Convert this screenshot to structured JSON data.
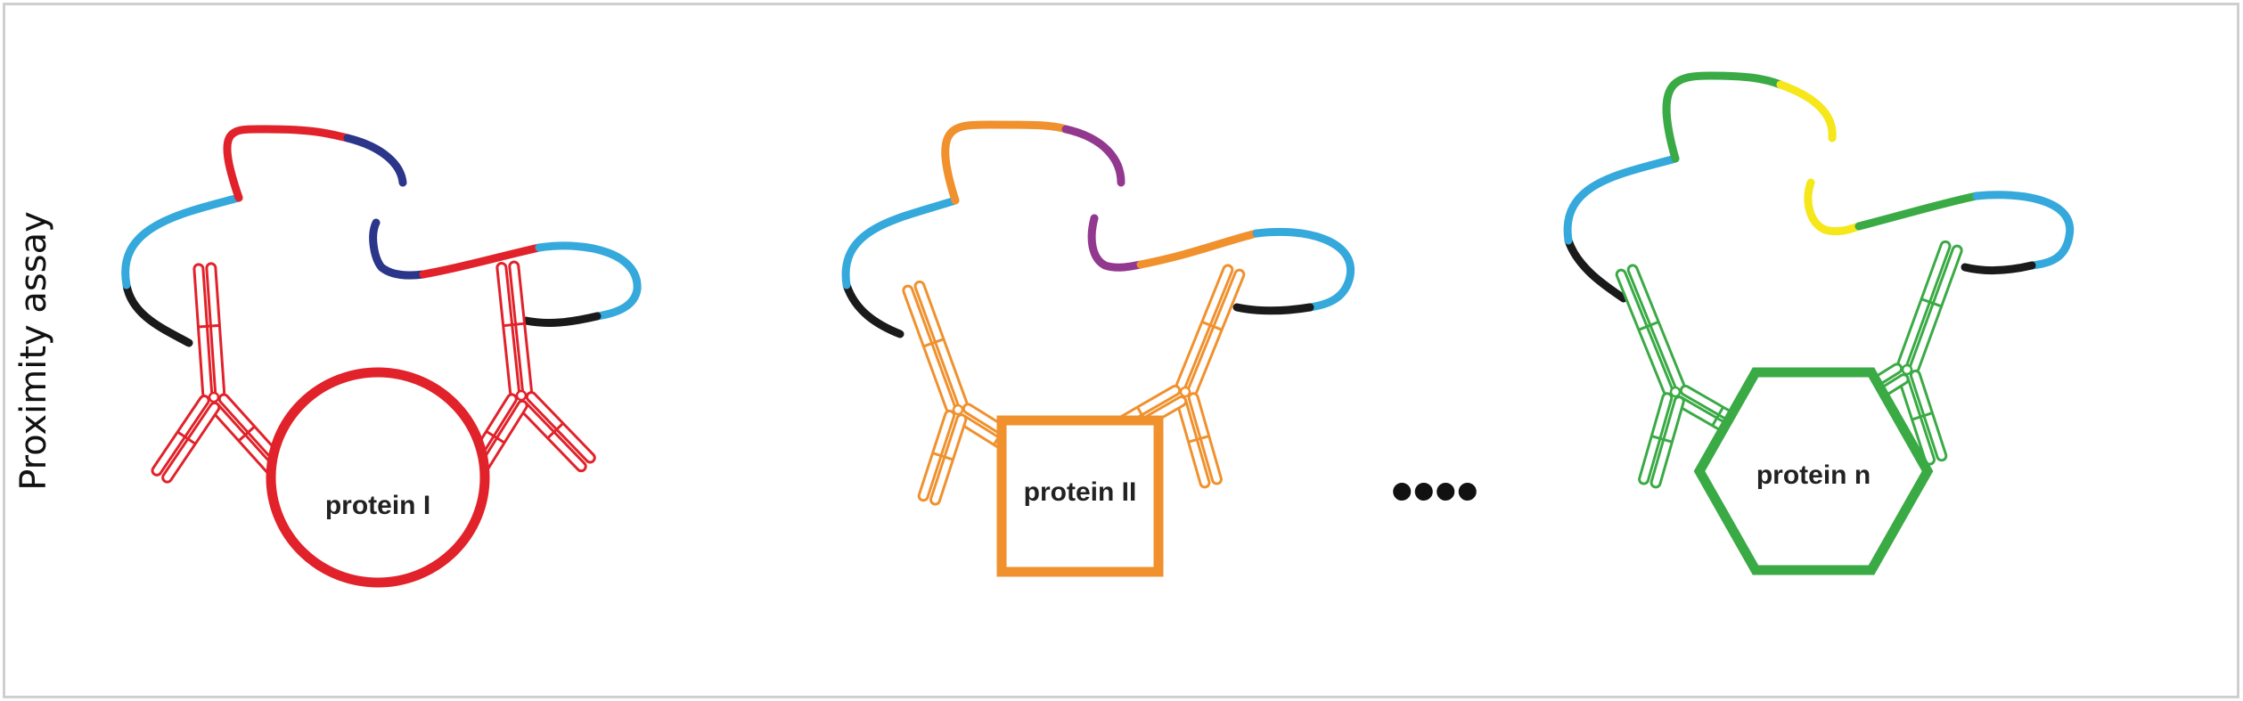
{
  "side_label": "Proximity assay",
  "ellipsis": "••••",
  "panels": [
    {
      "protein_label": "protein I",
      "shape": "circle",
      "color": "#e1222a",
      "strand_colors": {
        "linker": "#1a1a1a",
        "tag": "#35a9dc",
        "probe": "#e1222a",
        "connector": "#2b3589"
      }
    },
    {
      "protein_label": "protein II",
      "shape": "square",
      "color": "#f0912e",
      "strand_colors": {
        "linker": "#1a1a1a",
        "tag": "#35a9dc",
        "probe": "#f0912e",
        "connector": "#92398f"
      }
    },
    {
      "protein_label": "protein n",
      "shape": "hexagon",
      "color": "#3aaa45",
      "strand_colors": {
        "linker": "#1a1a1a",
        "tag": "#35a9dc",
        "probe": "#3aaa45",
        "connector": "#f5e719"
      }
    }
  ]
}
